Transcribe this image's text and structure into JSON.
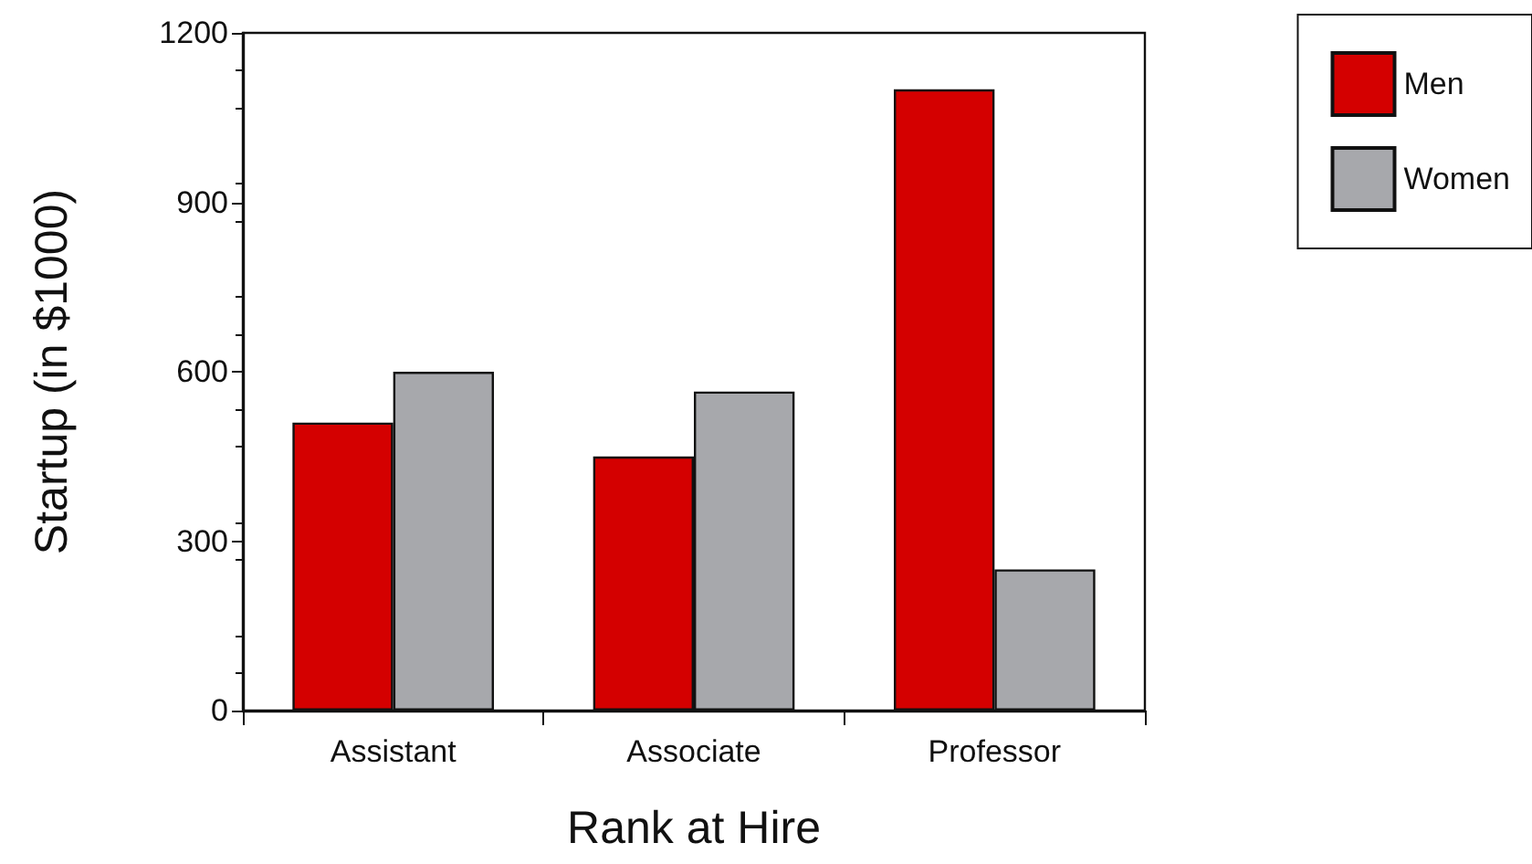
{
  "chart_data": {
    "type": "bar",
    "xlabel": "Rank at Hire",
    "ylabel": "Startup (in $1000)",
    "categories": [
      "Assistant",
      "Associate",
      "Professor"
    ],
    "series": [
      {
        "name": "Men",
        "color": "#d40000",
        "values": [
          510,
          450,
          1100
        ]
      },
      {
        "name": "Women",
        "color": "#a7a8ac",
        "values": [
          600,
          565,
          250
        ]
      }
    ],
    "ylim": [
      0,
      1200
    ],
    "yticks": [
      0,
      300,
      600,
      900,
      1200
    ],
    "grid": false,
    "legend": "top right"
  }
}
